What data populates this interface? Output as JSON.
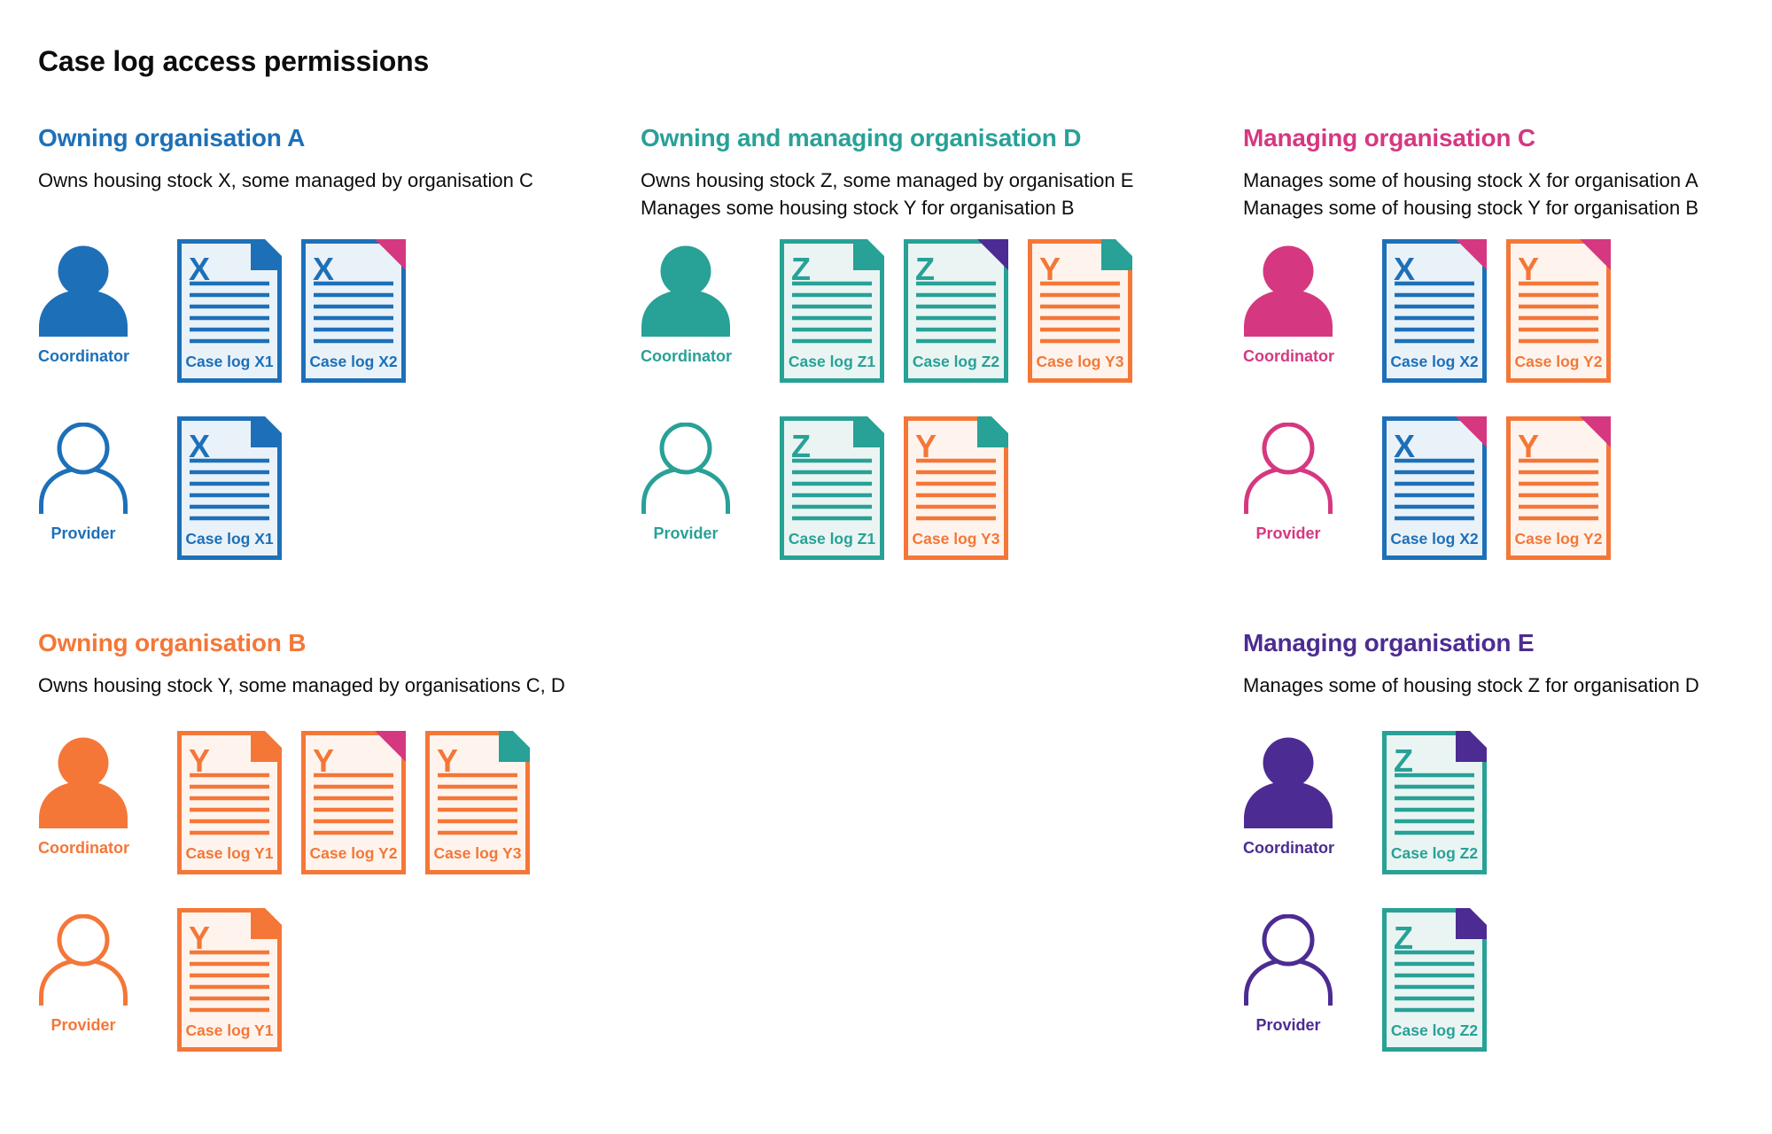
{
  "page_title": "Case log access permissions",
  "colors": {
    "blue": "#1d70b8",
    "teal": "#28a197",
    "pink": "#d53880",
    "orange": "#f47738",
    "purple": "#4c2c92",
    "text": "#0b0c0c",
    "blue_bg": "#eaf2f9",
    "teal_bg": "#eaf5f3",
    "orange_bg": "#fef4ed"
  },
  "roles": {
    "coordinator": "Coordinator",
    "provider": "Provider"
  },
  "sections": [
    {
      "id": "org-a",
      "title": "Owning organisation A",
      "color": "blue",
      "description": [
        "Owns housing stock X, some managed by organisation C"
      ],
      "rows": [
        {
          "role": "coordinator",
          "icon": "filled",
          "docs": [
            {
              "letter": "X",
              "label": "Case log X1",
              "doc_color": "blue",
              "corner_color": "blue",
              "corner_style": "fold"
            },
            {
              "letter": "X",
              "label": "Case log X2",
              "doc_color": "blue",
              "corner_color": "pink",
              "corner_style": "overlay"
            }
          ]
        },
        {
          "role": "provider",
          "icon": "outline",
          "docs": [
            {
              "letter": "X",
              "label": "Case log X1",
              "doc_color": "blue",
              "corner_color": "blue",
              "corner_style": "fold"
            }
          ]
        }
      ]
    },
    {
      "id": "org-d",
      "title": "Owning and managing organisation D",
      "color": "teal",
      "description": [
        "Owns housing stock Z, some managed by organisation E",
        "Manages some housing stock Y for organisation B"
      ],
      "rows": [
        {
          "role": "coordinator",
          "icon": "filled",
          "docs": [
            {
              "letter": "Z",
              "label": "Case log Z1",
              "doc_color": "teal",
              "corner_color": "teal",
              "corner_style": "fold"
            },
            {
              "letter": "Z",
              "label": "Case log Z2",
              "doc_color": "teal",
              "corner_color": "purple",
              "corner_style": "overlay"
            },
            {
              "letter": "Y",
              "label": "Case log Y3",
              "doc_color": "orange",
              "corner_color": "teal",
              "corner_style": "fold"
            }
          ]
        },
        {
          "role": "provider",
          "icon": "outline",
          "docs": [
            {
              "letter": "Z",
              "label": "Case log Z1",
              "doc_color": "teal",
              "corner_color": "teal",
              "corner_style": "fold"
            },
            {
              "letter": "Y",
              "label": "Case log Y3",
              "doc_color": "orange",
              "corner_color": "teal",
              "corner_style": "fold"
            }
          ]
        }
      ]
    },
    {
      "id": "org-c",
      "title": "Managing organisation C",
      "color": "pink",
      "description": [
        "Manages some of housing stock X for organisation A",
        "Manages some of housing stock Y for organisation B"
      ],
      "rows": [
        {
          "role": "coordinator",
          "icon": "filled",
          "docs": [
            {
              "letter": "X",
              "label": "Case log X2",
              "doc_color": "blue",
              "corner_color": "pink",
              "corner_style": "overlay"
            },
            {
              "letter": "Y",
              "label": "Case log Y2",
              "doc_color": "orange",
              "corner_color": "pink",
              "corner_style": "overlay"
            }
          ]
        },
        {
          "role": "provider",
          "icon": "outline",
          "docs": [
            {
              "letter": "X",
              "label": "Case log X2",
              "doc_color": "blue",
              "corner_color": "pink",
              "corner_style": "overlay"
            },
            {
              "letter": "Y",
              "label": "Case log Y2",
              "doc_color": "orange",
              "corner_color": "pink",
              "corner_style": "overlay"
            }
          ]
        }
      ]
    },
    {
      "id": "org-b",
      "title": "Owning organisation B",
      "color": "orange",
      "description": [
        "Owns housing stock Y, some managed by organisations C, D"
      ],
      "rows": [
        {
          "role": "coordinator",
          "icon": "filled",
          "docs": [
            {
              "letter": "Y",
              "label": "Case log Y1",
              "doc_color": "orange",
              "corner_color": "orange",
              "corner_style": "fold"
            },
            {
              "letter": "Y",
              "label": "Case log Y2",
              "doc_color": "orange",
              "corner_color": "pink",
              "corner_style": "overlay"
            },
            {
              "letter": "Y",
              "label": "Case log Y3",
              "doc_color": "orange",
              "corner_color": "teal",
              "corner_style": "fold"
            }
          ]
        },
        {
          "role": "provider",
          "icon": "outline",
          "docs": [
            {
              "letter": "Y",
              "label": "Case log Y1",
              "doc_color": "orange",
              "corner_color": "orange",
              "corner_style": "fold"
            }
          ]
        }
      ]
    },
    {
      "id": "org-e",
      "title": "Managing organisation E",
      "color": "purple",
      "description": [
        "Manages some of housing stock Z for organisation D"
      ],
      "rows": [
        {
          "role": "coordinator",
          "icon": "filled",
          "docs": [
            {
              "letter": "Z",
              "label": "Case log Z2",
              "doc_color": "teal",
              "corner_color": "purple",
              "corner_style": "fold"
            }
          ]
        },
        {
          "role": "provider",
          "icon": "outline",
          "docs": [
            {
              "letter": "Z",
              "label": "Case log Z2",
              "doc_color": "teal",
              "corner_color": "purple",
              "corner_style": "fold"
            }
          ]
        }
      ]
    }
  ]
}
